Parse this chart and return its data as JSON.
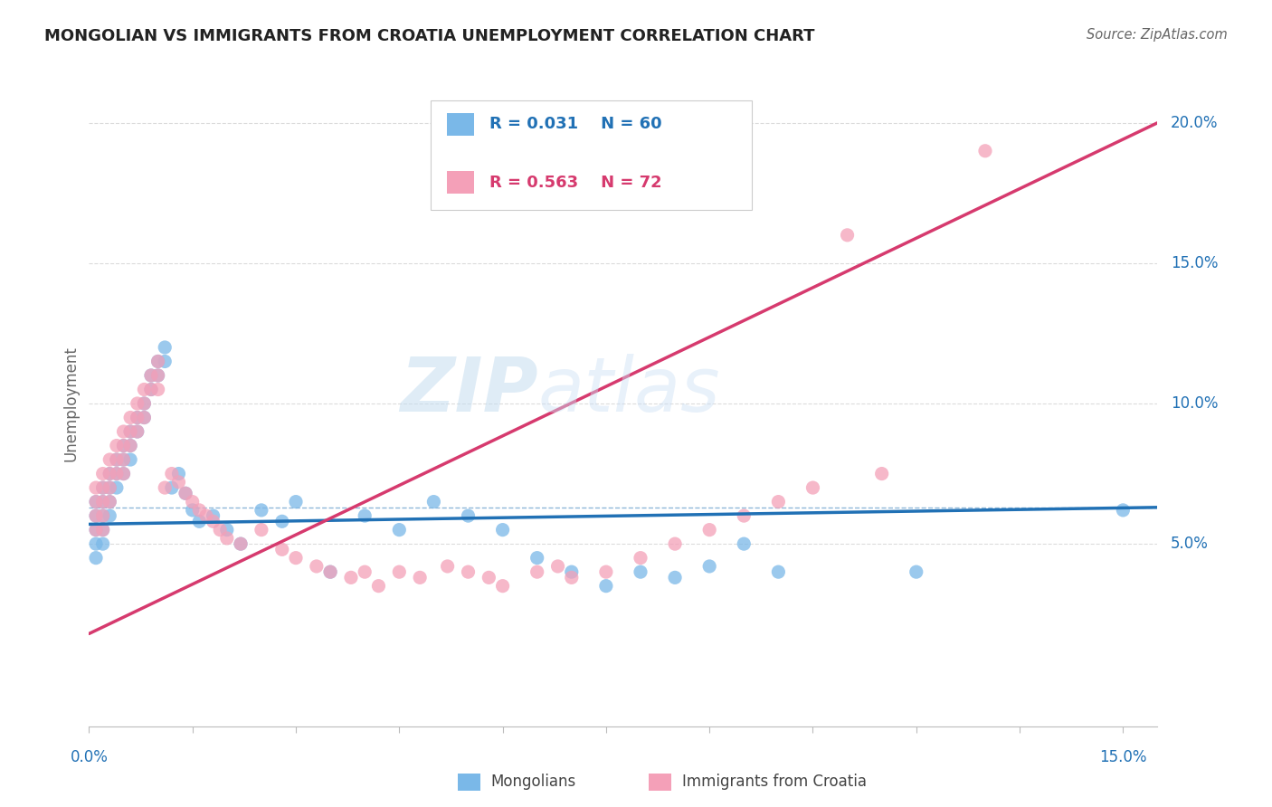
{
  "title": "MONGOLIAN VS IMMIGRANTS FROM CROATIA UNEMPLOYMENT CORRELATION CHART",
  "source": "Source: ZipAtlas.com",
  "ylabel_label": "Unemployment",
  "right_yticklabels": [
    "",
    "5.0%",
    "10.0%",
    "15.0%",
    "20.0%"
  ],
  "right_yticks": [
    0.0,
    0.05,
    0.1,
    0.15,
    0.2
  ],
  "xlim": [
    0.0,
    0.155
  ],
  "ylim": [
    -0.015,
    0.215
  ],
  "legend_r1": "R = 0.031",
  "legend_n1": "N = 60",
  "legend_r2": "R = 0.563",
  "legend_n2": "N = 72",
  "color_blue": "#7ab8e8",
  "color_pink": "#f4a0b8",
  "color_blue_dark": "#2171b5",
  "color_pink_dark": "#d63a6e",
  "watermark_zip": "ZIP",
  "watermark_atlas": "atlas",
  "blue_scatter_x": [
    0.001,
    0.001,
    0.001,
    0.001,
    0.001,
    0.002,
    0.002,
    0.002,
    0.002,
    0.002,
    0.003,
    0.003,
    0.003,
    0.003,
    0.004,
    0.004,
    0.004,
    0.005,
    0.005,
    0.005,
    0.006,
    0.006,
    0.006,
    0.007,
    0.007,
    0.008,
    0.008,
    0.009,
    0.009,
    0.01,
    0.01,
    0.011,
    0.011,
    0.012,
    0.013,
    0.014,
    0.015,
    0.016,
    0.018,
    0.02,
    0.022,
    0.025,
    0.028,
    0.03,
    0.035,
    0.04,
    0.045,
    0.05,
    0.055,
    0.06,
    0.065,
    0.07,
    0.075,
    0.08,
    0.085,
    0.09,
    0.095,
    0.1,
    0.12,
    0.15
  ],
  "blue_scatter_y": [
    0.065,
    0.06,
    0.055,
    0.05,
    0.045,
    0.07,
    0.065,
    0.06,
    0.055,
    0.05,
    0.075,
    0.07,
    0.065,
    0.06,
    0.08,
    0.075,
    0.07,
    0.085,
    0.08,
    0.075,
    0.09,
    0.085,
    0.08,
    0.095,
    0.09,
    0.1,
    0.095,
    0.11,
    0.105,
    0.115,
    0.11,
    0.12,
    0.115,
    0.07,
    0.075,
    0.068,
    0.062,
    0.058,
    0.06,
    0.055,
    0.05,
    0.062,
    0.058,
    0.065,
    0.04,
    0.06,
    0.055,
    0.065,
    0.06,
    0.055,
    0.045,
    0.04,
    0.035,
    0.04,
    0.038,
    0.042,
    0.05,
    0.04,
    0.04,
    0.062
  ],
  "pink_scatter_x": [
    0.001,
    0.001,
    0.001,
    0.001,
    0.002,
    0.002,
    0.002,
    0.002,
    0.002,
    0.003,
    0.003,
    0.003,
    0.003,
    0.004,
    0.004,
    0.004,
    0.005,
    0.005,
    0.005,
    0.005,
    0.006,
    0.006,
    0.006,
    0.007,
    0.007,
    0.007,
    0.008,
    0.008,
    0.008,
    0.009,
    0.009,
    0.01,
    0.01,
    0.01,
    0.011,
    0.012,
    0.013,
    0.014,
    0.015,
    0.016,
    0.017,
    0.018,
    0.019,
    0.02,
    0.022,
    0.025,
    0.028,
    0.03,
    0.033,
    0.035,
    0.038,
    0.04,
    0.042,
    0.045,
    0.048,
    0.052,
    0.055,
    0.058,
    0.06,
    0.065,
    0.068,
    0.07,
    0.075,
    0.08,
    0.085,
    0.09,
    0.095,
    0.1,
    0.105,
    0.11,
    0.115,
    0.13
  ],
  "pink_scatter_y": [
    0.07,
    0.065,
    0.06,
    0.055,
    0.075,
    0.07,
    0.065,
    0.06,
    0.055,
    0.08,
    0.075,
    0.07,
    0.065,
    0.085,
    0.08,
    0.075,
    0.09,
    0.085,
    0.08,
    0.075,
    0.095,
    0.09,
    0.085,
    0.1,
    0.095,
    0.09,
    0.105,
    0.1,
    0.095,
    0.11,
    0.105,
    0.115,
    0.11,
    0.105,
    0.07,
    0.075,
    0.072,
    0.068,
    0.065,
    0.062,
    0.06,
    0.058,
    0.055,
    0.052,
    0.05,
    0.055,
    0.048,
    0.045,
    0.042,
    0.04,
    0.038,
    0.04,
    0.035,
    0.04,
    0.038,
    0.042,
    0.04,
    0.038,
    0.035,
    0.04,
    0.042,
    0.038,
    0.04,
    0.045,
    0.05,
    0.055,
    0.06,
    0.065,
    0.07,
    0.16,
    0.075,
    0.19
  ],
  "blue_trend_x": [
    0.0,
    0.155
  ],
  "blue_trend_y": [
    0.057,
    0.063
  ],
  "pink_trend_x": [
    0.0,
    0.155
  ],
  "pink_trend_y": [
    0.018,
    0.2
  ],
  "dashed_line_y": 0.063,
  "grid_color": "#cccccc",
  "grid_alpha": 0.7
}
